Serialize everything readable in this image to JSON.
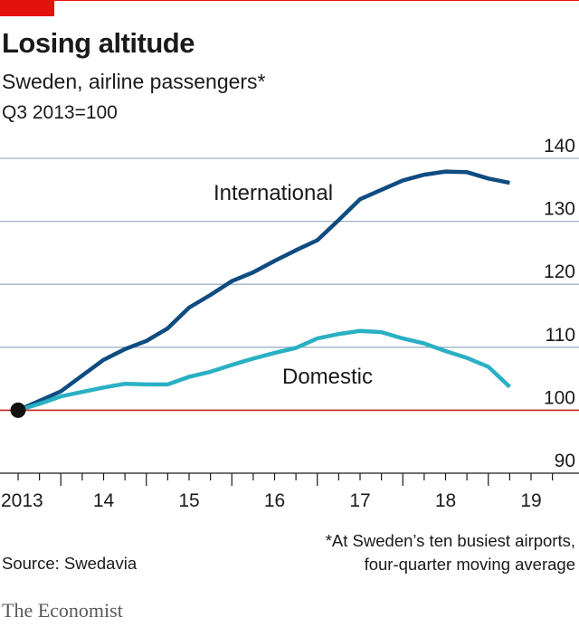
{
  "header": {
    "title": "Losing altitude",
    "subtitle": "Sweden, airline passengers*",
    "unit": "Q3 2013=100"
  },
  "footer": {
    "footnote_line1": "*At Sweden’s ten busiest airports,",
    "footnote_line2": "four-quarter moving average",
    "source": "Source: Swedavia",
    "brand": "The Economist"
  },
  "colors": {
    "international": "#0f4c81",
    "domestic": "#2ab0c3",
    "grid": "#9cb3c4",
    "baseline": "#c2241e",
    "accent": "#e3120b"
  },
  "chart_data": {
    "type": "line",
    "ylim": [
      90,
      140
    ],
    "yticks": [
      90,
      100,
      110,
      120,
      130,
      140
    ],
    "ytick_labels": [
      "90",
      "100",
      "110",
      "120",
      "130",
      "140"
    ],
    "xlim": [
      2013.5,
      2019.75
    ],
    "xtick_labels": [
      {
        "label": "2013",
        "year": 2013
      },
      {
        "label": "14",
        "year": 2014
      },
      {
        "label": "15",
        "year": 2015
      },
      {
        "label": "16",
        "year": 2016
      },
      {
        "label": "17",
        "year": 2017
      },
      {
        "label": "18",
        "year": 2018
      },
      {
        "label": "19",
        "year": 2019
      }
    ],
    "baseline": 100,
    "x": [
      "2013 Q3",
      "2013 Q4",
      "2014 Q1",
      "2014 Q2",
      "2014 Q3",
      "2014 Q4",
      "2015 Q1",
      "2015 Q2",
      "2015 Q3",
      "2015 Q4",
      "2016 Q1",
      "2016 Q2",
      "2016 Q3",
      "2016 Q4",
      "2017 Q1",
      "2017 Q2",
      "2017 Q3",
      "2017 Q4",
      "2018 Q1",
      "2018 Q2",
      "2018 Q3",
      "2018 Q4",
      "2019 Q1",
      "2019 Q2"
    ],
    "series": [
      {
        "name": "International",
        "color": "#0f4c81",
        "values": [
          100,
          101.5,
          103,
          105.5,
          108,
          109.7,
          111,
          113,
          116.3,
          118.3,
          120.5,
          121.9,
          123.7,
          125.4,
          127,
          130.2,
          133.5,
          135,
          136.5,
          137.4,
          137.9,
          137.8,
          136.8,
          136.1
        ]
      },
      {
        "name": "Domestic",
        "color": "#2ab0c3",
        "values": [
          100,
          101,
          102.2,
          102.9,
          103.6,
          104.2,
          104.1,
          104.1,
          105.3,
          106.1,
          107.2,
          108.2,
          109.1,
          109.9,
          111.4,
          112.1,
          112.6,
          112.4,
          111.4,
          110.6,
          109.4,
          108.3,
          106.9,
          103.7
        ]
      }
    ]
  }
}
